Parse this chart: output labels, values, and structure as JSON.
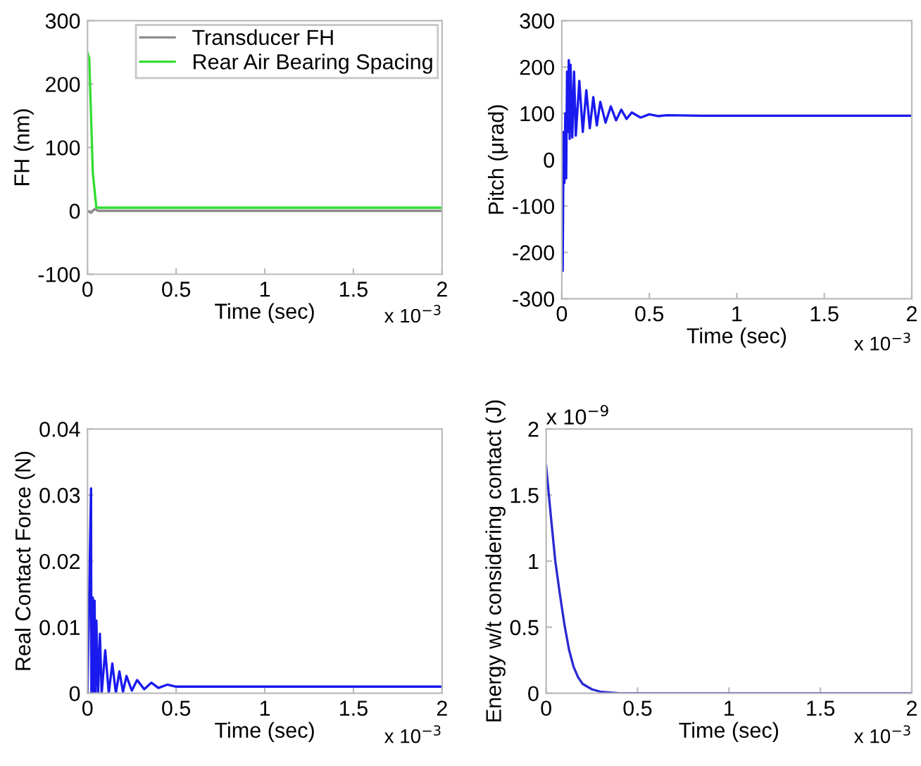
{
  "chart_data": [
    {
      "type": "line",
      "xlabel": "Time (sec)",
      "ylabel": "FH (nm)",
      "legend": "top right",
      "series": [
        {
          "name": "Transducer FH",
          "color": "#8c8c8c",
          "x": [
            0,
            0.02,
            0.04,
            0.06,
            2
          ],
          "values": [
            0,
            -3,
            3,
            0,
            0
          ]
        },
        {
          "name": "Rear Air Bearing Spacing",
          "color": "#33dd33",
          "x": [
            0,
            0.01,
            0.03,
            0.05,
            2
          ],
          "values": [
            250,
            240,
            60,
            5,
            5
          ]
        }
      ],
      "xlim": [
        0,
        2
      ],
      "xticks": [
        0,
        0.5,
        1,
        1.5,
        2
      ],
      "ylim": [
        -100,
        300
      ],
      "yticks": [
        -100,
        0,
        100,
        200,
        300
      ],
      "annotations": [
        "x 10$^{−3}$"
      ]
    },
    {
      "type": "line",
      "xlabel": "Time (sec)",
      "ylabel": "Pitch (μrad)",
      "series": [
        {
          "color": "#1a1aee",
          "x": [
            0,
            0.005,
            0.01,
            0.015,
            0.02,
            0.025,
            0.03,
            0.035,
            0.04,
            0.045,
            0.05,
            0.06,
            0.07,
            0.08,
            0.1,
            0.12,
            0.14,
            0.16,
            0.18,
            0.2,
            0.22,
            0.25,
            0.28,
            0.31,
            0.34,
            0.37,
            0.4,
            0.45,
            0.5,
            0.55,
            0.6,
            0.8,
            2
          ],
          "values": [
            -60,
            -240,
            60,
            -50,
            100,
            -40,
            190,
            60,
            215,
            45,
            205,
            48,
            190,
            52,
            170,
            60,
            150,
            68,
            135,
            74,
            125,
            80,
            115,
            85,
            108,
            88,
            102,
            91,
            98,
            94,
            96,
            95,
            95
          ]
        }
      ],
      "xlim": [
        0,
        2
      ],
      "xticks": [
        0,
        0.5,
        1,
        1.5,
        2
      ],
      "ylim": [
        -300,
        300
      ],
      "yticks": [
        -300,
        -200,
        -100,
        0,
        100,
        200,
        300
      ],
      "annotations": [
        "x 10$^{−3}$"
      ]
    },
    {
      "type": "line",
      "xlabel": "Time (sec)",
      "ylabel": "Real Contact Force (N)",
      "series": [
        {
          "color": "#1a1aee",
          "x": [
            0,
            0.02,
            0.022,
            0.03,
            0.035,
            0.04,
            0.045,
            0.05,
            0.06,
            0.07,
            0.08,
            0.1,
            0.12,
            0.14,
            0.16,
            0.18,
            0.2,
            0.22,
            0.25,
            0.28,
            0.32,
            0.36,
            0.4,
            0.45,
            0.5,
            2
          ],
          "values": [
            0,
            0.031,
            0,
            0.0145,
            0,
            0.014,
            0,
            0.011,
            0,
            0.009,
            0,
            0.0065,
            0,
            0.0045,
            0,
            0.0033,
            0.0002,
            0.0026,
            0.0004,
            0.002,
            0.0006,
            0.0016,
            0.0008,
            0.0013,
            0.001,
            0.001
          ]
        }
      ],
      "xlim": [
        0,
        2
      ],
      "xticks": [
        0,
        0.5,
        1,
        1.5,
        2
      ],
      "ylim": [
        0,
        0.04
      ],
      "yticks": [
        0,
        0.01,
        0.02,
        0.03,
        0.04
      ],
      "annotations": [
        "x 10$^{−3}$"
      ]
    },
    {
      "type": "line",
      "xlabel": "Time (sec)",
      "ylabel": "Energy w/t considering contact (J)",
      "series": [
        {
          "color": "#2a2ad0",
          "x": [
            0,
            0.025,
            0.05,
            0.075,
            0.1,
            0.125,
            0.15,
            0.175,
            0.2,
            0.25,
            0.3,
            0.4,
            2
          ],
          "values": [
            1.72,
            1.35,
            1.0,
            0.75,
            0.52,
            0.33,
            0.2,
            0.12,
            0.07,
            0.03,
            0.01,
            0,
            0
          ]
        }
      ],
      "xlim": [
        0,
        2
      ],
      "xticks": [
        0,
        0.5,
        1,
        1.5,
        2
      ],
      "ylim": [
        0,
        2
      ],
      "yticks": [
        0,
        0.5,
        1,
        1.5,
        2
      ],
      "annotations": [
        "x 10$^{−3}$",
        "x 10$^{−9}$"
      ]
    }
  ]
}
